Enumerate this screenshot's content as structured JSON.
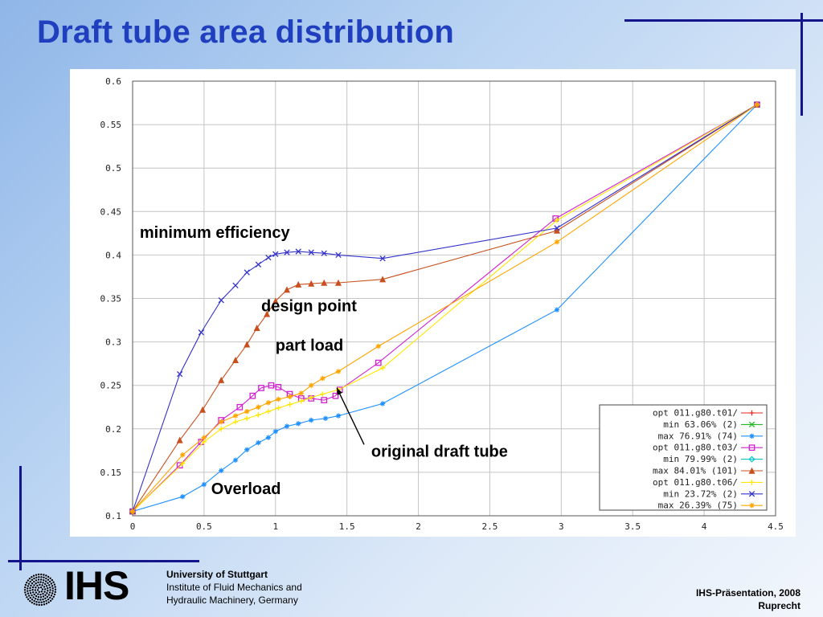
{
  "slide": {
    "title": "Draft tube area distribution"
  },
  "footer": {
    "logo_text": "IHS",
    "university": "University of Stuttgart",
    "institute_line1": "Institute of Fluid Mechanics and",
    "institute_line2": "Hydraulic Machinery, Germany",
    "presentation": "IHS-Präsentation, 2008",
    "author": "Ruprecht"
  },
  "colors": {
    "title": "#1f3fbf",
    "deco_lines": "#14148c"
  },
  "chart_data": {
    "type": "line",
    "xlim": [
      0,
      4.5
    ],
    "ylim": [
      0.1,
      0.6
    ],
    "xticks": [
      0,
      0.5,
      1,
      1.5,
      2,
      2.5,
      3,
      3.5,
      4,
      4.5
    ],
    "yticks": [
      0.1,
      0.15,
      0.2,
      0.25,
      0.3,
      0.35,
      0.4,
      0.45,
      0.5,
      0.55,
      0.6
    ],
    "xtick_labels": [
      "0",
      "0.5",
      "1",
      "1.5",
      "2",
      "2.5",
      "3",
      "3.5",
      "4",
      "4.5"
    ],
    "ytick_labels": [
      "0.1",
      "0.15",
      "0.2",
      "0.25",
      "0.3",
      "0.35",
      "0.4",
      "0.45",
      "0.5",
      "0.55",
      "0.6"
    ],
    "grid": true,
    "legend_position": "bottom-right",
    "series": [
      {
        "name": "opt 011.g80.t01/",
        "color": "#e8261e",
        "marker": "plus",
        "x": [],
        "y": []
      },
      {
        "name": "min 63.06% (2)",
        "color": "#22bb22",
        "marker": "x",
        "x": [],
        "y": []
      },
      {
        "name": "max 76.91% (74)",
        "color": "#1e90ff",
        "marker": "star",
        "x": [
          0,
          0.35,
          0.5,
          0.62,
          0.72,
          0.8,
          0.88,
          0.95,
          1.0,
          1.08,
          1.16,
          1.25,
          1.35,
          1.44,
          1.75,
          2.97,
          4.37
        ],
        "y": [
          0.105,
          0.122,
          0.136,
          0.152,
          0.164,
          0.176,
          0.184,
          0.19,
          0.197,
          0.203,
          0.206,
          0.21,
          0.212,
          0.215,
          0.229,
          0.337,
          0.573
        ]
      },
      {
        "name": "opt 011.g80.t03/",
        "color": "#d020d0",
        "marker": "square",
        "x": [
          0,
          0.33,
          0.48,
          0.62,
          0.75,
          0.84,
          0.9,
          0.97,
          1.02,
          1.1,
          1.18,
          1.25,
          1.34,
          1.42,
          1.45,
          1.72,
          2.96,
          4.37
        ],
        "y": [
          0.105,
          0.158,
          0.185,
          0.21,
          0.225,
          0.238,
          0.247,
          0.25,
          0.248,
          0.24,
          0.235,
          0.235,
          0.233,
          0.238,
          0.245,
          0.276,
          0.442,
          0.573
        ]
      },
      {
        "name": "min 79.99% (2)",
        "color": "#00c8c8",
        "marker": "diamond",
        "x": [],
        "y": []
      },
      {
        "name": "max 84.01% (101)",
        "color": "#c8501e",
        "marker": "triangle",
        "x": [
          0,
          0.33,
          0.49,
          0.62,
          0.72,
          0.8,
          0.87,
          0.94,
          1.0,
          1.08,
          1.16,
          1.25,
          1.34,
          1.44,
          1.75,
          2.97,
          4.37
        ],
        "y": [
          0.105,
          0.187,
          0.222,
          0.256,
          0.279,
          0.297,
          0.316,
          0.332,
          0.347,
          0.36,
          0.366,
          0.367,
          0.368,
          0.368,
          0.372,
          0.428,
          0.573
        ]
      },
      {
        "name": "opt 011.g80.t06/",
        "color": "#ffe600",
        "marker": "plus",
        "x": [
          0,
          0.35,
          0.5,
          0.62,
          0.72,
          0.8,
          0.88,
          0.95,
          1.02,
          1.1,
          1.18,
          1.25,
          1.33,
          1.44,
          1.75,
          2.97,
          4.37
        ],
        "y": [
          0.105,
          0.16,
          0.185,
          0.2,
          0.208,
          0.212,
          0.216,
          0.22,
          0.224,
          0.228,
          0.232,
          0.236,
          0.24,
          0.245,
          0.27,
          0.44,
          0.573
        ]
      },
      {
        "name": "min 23.72% (2)",
        "color": "#3333cc",
        "marker": "x",
        "x": [
          0,
          0.33,
          0.48,
          0.62,
          0.72,
          0.8,
          0.88,
          0.95,
          1.0,
          1.08,
          1.16,
          1.25,
          1.34,
          1.44,
          1.75,
          2.97,
          4.37
        ],
        "y": [
          0.105,
          0.263,
          0.311,
          0.348,
          0.365,
          0.38,
          0.389,
          0.397,
          0.401,
          0.403,
          0.404,
          0.403,
          0.402,
          0.4,
          0.396,
          0.431,
          0.573
        ]
      },
      {
        "name": "max 26.39% (75)",
        "color": "#ffa500",
        "marker": "star",
        "x": [
          0,
          0.35,
          0.5,
          0.62,
          0.72,
          0.8,
          0.88,
          0.95,
          1.02,
          1.1,
          1.18,
          1.25,
          1.33,
          1.44,
          1.72,
          2.97,
          4.37
        ],
        "y": [
          0.105,
          0.17,
          0.19,
          0.208,
          0.215,
          0.22,
          0.225,
          0.23,
          0.234,
          0.237,
          0.241,
          0.25,
          0.258,
          0.266,
          0.295,
          0.415,
          0.573
        ]
      }
    ],
    "annotations": [
      {
        "text": "minimum efficiency",
        "x": 0.05,
        "y": 0.42
      },
      {
        "text": "design point",
        "x": 0.9,
        "y": 0.335
      },
      {
        "text": "part load",
        "x": 1.0,
        "y": 0.29
      },
      {
        "text": "original draft tube",
        "x": 1.67,
        "y": 0.168
      },
      {
        "text": "Overload",
        "x": 0.55,
        "y": 0.125
      }
    ],
    "arrow": {
      "from": [
        1.62,
        0.182
      ],
      "to": [
        1.43,
        0.247
      ]
    }
  }
}
